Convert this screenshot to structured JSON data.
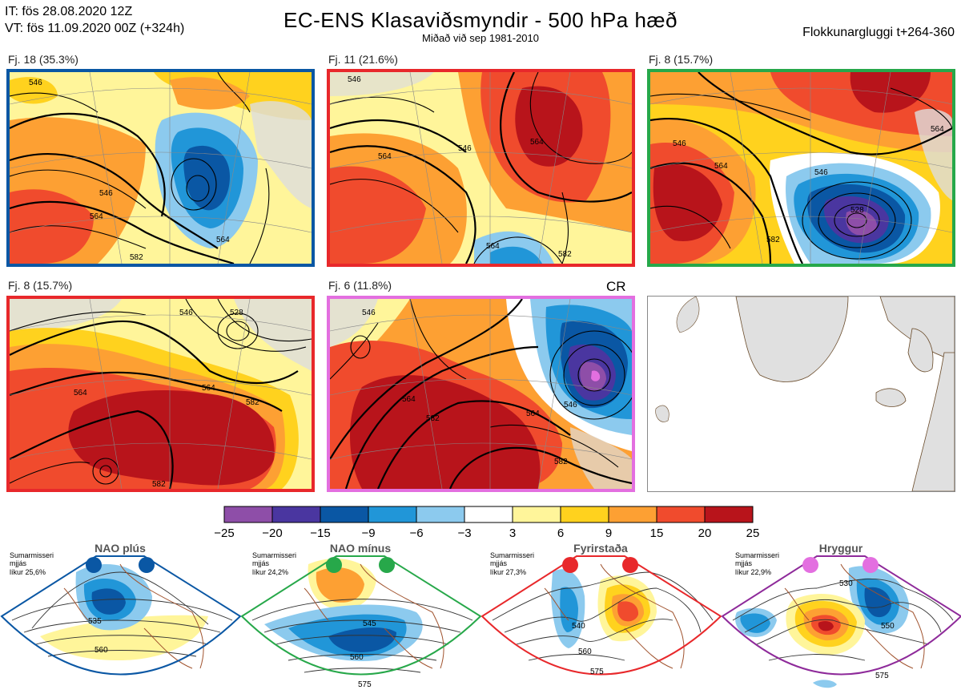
{
  "header": {
    "it_line": "IT: fös 28.08.2020 12Z",
    "vt_line": "VT: fös 11.09.2020 00Z  (+324h)",
    "title": "EC-ENS Klasaviðsmyndir - 500 hPa hæð",
    "subtitle": "Miðað við sep 1981-2010",
    "window": "Flokkunargluggi t+264-360"
  },
  "panels": [
    {
      "label": "Fj. 18 (35.3%)",
      "border": "#0a57a4",
      "contours": [
        "546",
        "564",
        "546",
        "582",
        "564"
      ]
    },
    {
      "label": "Fj. 11 (21.6%)",
      "border": "#e8282b",
      "contours": [
        "546",
        "564",
        "546",
        "564",
        "564",
        "582"
      ]
    },
    {
      "label": "Fj. 8 (15.7%)",
      "border": "#27a84a",
      "contours": [
        "546",
        "564",
        "546",
        "528",
        "582",
        "564"
      ]
    },
    {
      "label": "Fj. 8 (15.7%)",
      "border": "#e8282b",
      "contours": [
        "546",
        "528",
        "564",
        "582",
        "564",
        "582"
      ]
    },
    {
      "label": "Fj. 6 (11.8%)",
      "border": "#e36fe0",
      "contours": [
        "546",
        "564",
        "582",
        "564",
        "546",
        "582"
      ]
    },
    {
      "label": "",
      "border": "#888888",
      "contours": []
    }
  ],
  "cr_label": "CR",
  "colorbar": {
    "ticks": [
      "−25",
      "−20",
      "−15",
      "−9",
      "−6",
      "−3",
      "3",
      "6",
      "9",
      "15",
      "20",
      "25"
    ],
    "colors": [
      "#8e4ea8",
      "#4a36a0",
      "#0a57a4",
      "#2196d8",
      "#8ccaee",
      "#ffffff",
      "#fff59a",
      "#ffd21e",
      "#fda033",
      "#f04b2d",
      "#b8141b"
    ]
  },
  "regimes": [
    {
      "title": "NAO plús",
      "note1": "Sumarmisseri",
      "note2": "mjjás",
      "note3": "líkur 25,6%",
      "color": "#0a57a4",
      "contours": [
        "535",
        "560"
      ]
    },
    {
      "title": "NAO mínus",
      "note1": "Sumarmisseri",
      "note2": "mjjás",
      "note3": "líkur 24,2%",
      "color": "#27a84a",
      "contours": [
        "545",
        "560",
        "575"
      ]
    },
    {
      "title": "Fyrirstaða",
      "note1": "Sumarmisseri",
      "note2": "mjjás",
      "note3": "líkur 27,3%",
      "color": "#e8282b",
      "contours": [
        "540",
        "560",
        "575"
      ]
    },
    {
      "title": "Hryggur",
      "note1": "Sumarmisseri",
      "note2": "mjjás",
      "note3": "líkur 22,9%",
      "color": "#8e2a9a",
      "contours": [
        "530",
        "550",
        "575"
      ]
    }
  ]
}
